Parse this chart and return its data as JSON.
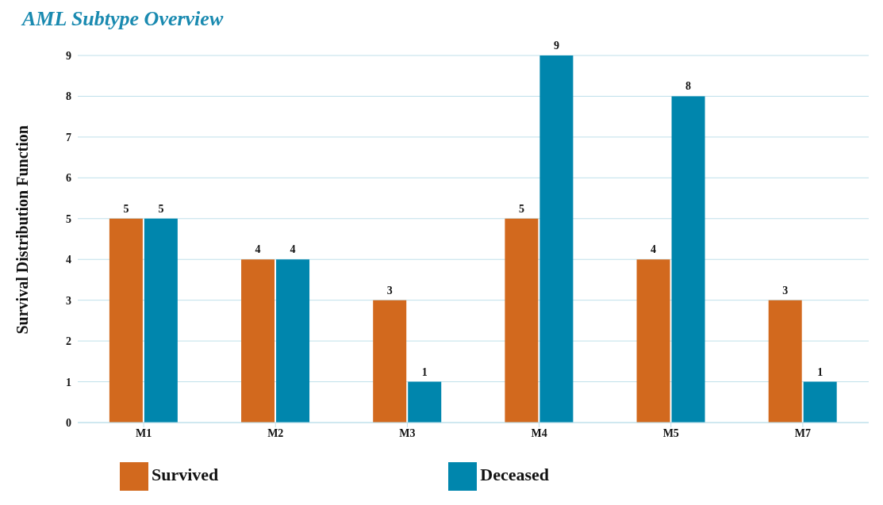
{
  "chart_data": {
    "type": "bar",
    "title": "AML Subtype Overview",
    "ylabel": "Survival Distribution Function",
    "categories": [
      "M1",
      "M2",
      "M3",
      "M4",
      "M5",
      "M7"
    ],
    "series": [
      {
        "name": "Survived",
        "color": "#d2691e",
        "values": [
          5,
          4,
          3,
          5,
          4,
          3
        ]
      },
      {
        "name": "Deceased",
        "color": "#0086ad",
        "values": [
          5,
          4,
          1,
          9,
          8,
          1
        ]
      }
    ],
    "ylim": [
      0,
      9
    ],
    "yticks": [
      0,
      1,
      2,
      3,
      4,
      5,
      6,
      7,
      8,
      9
    ],
    "grid": "y",
    "legend": "bottom",
    "data_labels": true
  }
}
